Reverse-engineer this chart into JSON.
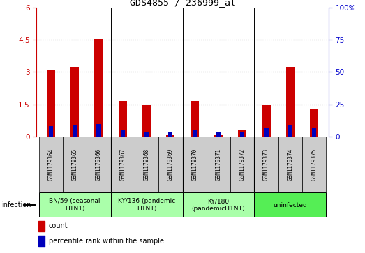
{
  "title": "GDS4855 / 236999_at",
  "samples": [
    "GSM1179364",
    "GSM1179365",
    "GSM1179366",
    "GSM1179367",
    "GSM1179368",
    "GSM1179369",
    "GSM1179370",
    "GSM1179371",
    "GSM1179372",
    "GSM1179373",
    "GSM1179374",
    "GSM1179375"
  ],
  "count_values": [
    3.1,
    3.25,
    4.55,
    1.65,
    1.5,
    0.08,
    1.65,
    0.05,
    0.3,
    1.5,
    3.25,
    1.3
  ],
  "percentile_values": [
    8,
    9,
    10,
    5,
    4,
    3,
    5,
    3,
    3,
    7,
    9,
    7
  ],
  "count_color": "#cc0000",
  "percentile_color": "#0000cc",
  "ylim_left": [
    0,
    6
  ],
  "ylim_right": [
    0,
    100
  ],
  "yticks_left": [
    0,
    1.5,
    3.0,
    4.5,
    6
  ],
  "yticks_left_labels": [
    "0",
    "1.5",
    "3",
    "4.5",
    "6"
  ],
  "yticks_right": [
    0,
    25,
    50,
    75,
    100
  ],
  "yticks_right_labels": [
    "0",
    "25",
    "50",
    "75",
    "100%"
  ],
  "groups": [
    {
      "label": "BN/59 (seasonal\nH1N1)",
      "start": 0,
      "end": 3,
      "color": "#aaffaa"
    },
    {
      "label": "KY/136 (pandemic\nH1N1)",
      "start": 3,
      "end": 6,
      "color": "#aaffaa"
    },
    {
      "label": "KY/180\n(pandemicH1N1)",
      "start": 6,
      "end": 9,
      "color": "#aaffaa"
    },
    {
      "label": "uninfected",
      "start": 9,
      "end": 12,
      "color": "#55ee55"
    }
  ],
  "infection_label": "infection",
  "legend_count_label": "count",
  "legend_percentile_label": "percentile rank within the sample",
  "dotted_line_color": "#555555",
  "bar_width": 0.35,
  "pct_bar_width": 0.18,
  "sample_box_color": "#cccccc",
  "count_bar_color": "#cc0000",
  "pct_bar_color": "#0000bb"
}
